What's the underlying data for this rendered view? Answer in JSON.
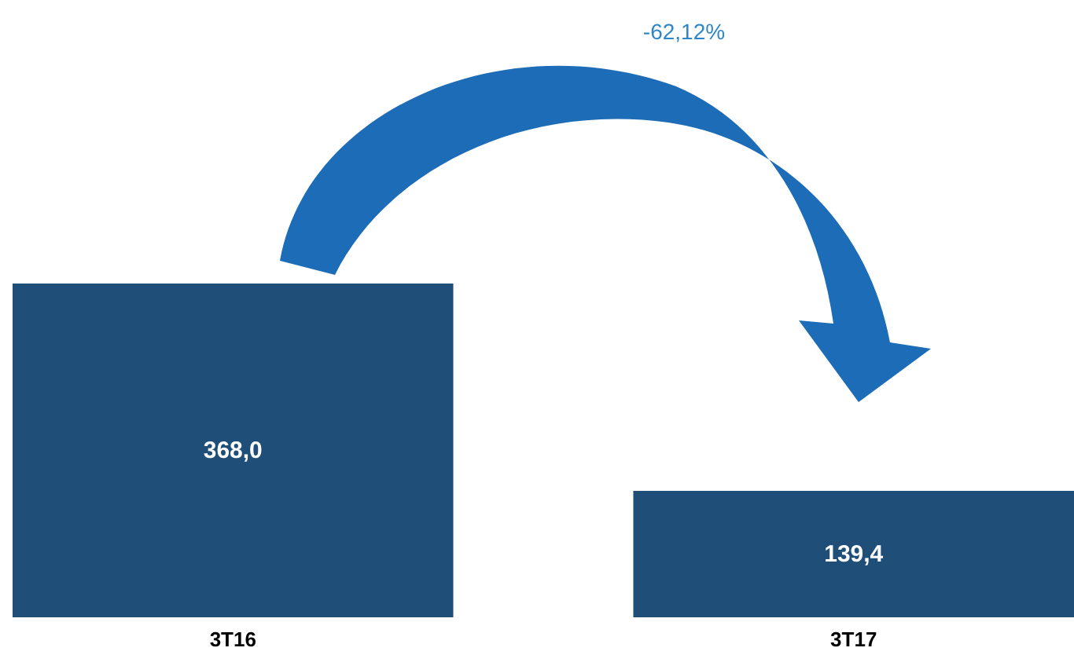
{
  "chart_data": {
    "type": "bar",
    "categories": [
      "3T16",
      "3T17"
    ],
    "values": [
      368.0,
      139.4
    ],
    "color": "#1f4e79",
    "value_labels": [
      "368,0",
      "139,4"
    ],
    "annotations": [
      "-62,12%"
    ],
    "grid": false
  }
}
